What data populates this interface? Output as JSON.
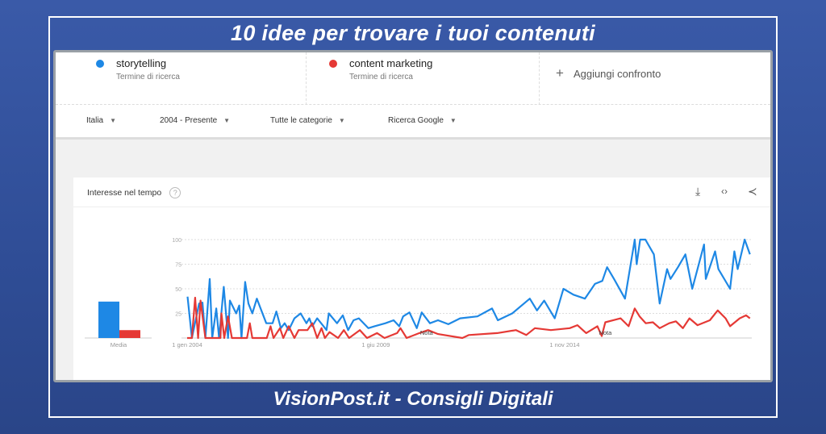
{
  "banner": {
    "title": "10 idee per trovare i tuoi contenuti",
    "footer": "VisionPost.it - Consigli Digitali"
  },
  "terms": [
    {
      "name": "storytelling",
      "sub": "Termine di ricerca",
      "color": "#1e88e5"
    },
    {
      "name": "content marketing",
      "sub": "Termine di ricerca",
      "color": "#e53935"
    }
  ],
  "add_compare": {
    "icon": "plus-icon",
    "label": "Aggiungi confronto"
  },
  "filters": [
    {
      "label": "Italia"
    },
    {
      "label": "2004 - Presente"
    },
    {
      "label": "Tutte le categorie"
    },
    {
      "label": "Ricerca Google"
    }
  ],
  "card": {
    "title": "Interesse nel tempo",
    "help": "?",
    "icons": [
      "download-icon",
      "embed-icon",
      "share-icon"
    ]
  },
  "chart_data": {
    "type": "line",
    "title": "Interesse nel tempo",
    "ylim": [
      0,
      100
    ],
    "yticks": [
      "100",
      "75",
      "50",
      "25"
    ],
    "xticks": [
      {
        "label": "1 gen 2004",
        "date": "2004-01-01"
      },
      {
        "label": "1 giu 2009",
        "date": "2009-06-01"
      },
      {
        "label": "1 nov 2014",
        "date": "2014-11-01"
      }
    ],
    "grid": true,
    "average": {
      "label": "Media",
      "values": [
        37,
        8
      ]
    },
    "annotations": [
      {
        "label": "Nota",
        "date": "2010-11-15"
      },
      {
        "label": "Nota",
        "date": "2016-01-01"
      }
    ],
    "series": [
      {
        "name": "storytelling",
        "color": "#1e88e5",
        "points": [
          [
            "2004-01-05",
            42
          ],
          [
            "2004-02-20",
            0
          ],
          [
            "2004-05-05",
            35
          ],
          [
            "2004-06-10",
            36
          ],
          [
            "2004-07-10",
            0
          ],
          [
            "2004-08-25",
            60
          ],
          [
            "2004-09-20",
            0
          ],
          [
            "2004-11-01",
            30
          ],
          [
            "2004-12-01",
            0
          ],
          [
            "2005-01-20",
            52
          ],
          [
            "2005-03-05",
            0
          ],
          [
            "2005-03-25",
            38
          ],
          [
            "2005-05-30",
            25
          ],
          [
            "2005-07-01",
            33
          ],
          [
            "2005-07-25",
            0
          ],
          [
            "2005-09-01",
            57
          ],
          [
            "2005-10-05",
            35
          ],
          [
            "2005-11-15",
            25
          ],
          [
            "2006-01-01",
            40
          ],
          [
            "2006-04-10",
            15
          ],
          [
            "2006-06-15",
            15
          ],
          [
            "2006-07-25",
            27
          ],
          [
            "2006-09-10",
            10
          ],
          [
            "2006-10-20",
            15
          ],
          [
            "2006-12-01",
            8
          ],
          [
            "2007-01-30",
            20
          ],
          [
            "2007-04-05",
            25
          ],
          [
            "2007-06-05",
            15
          ],
          [
            "2007-07-05",
            20
          ],
          [
            "2007-08-05",
            12
          ],
          [
            "2007-09-25",
            20
          ],
          [
            "2007-12-01",
            12
          ],
          [
            "2008-01-01",
            8
          ],
          [
            "2008-01-25",
            25
          ],
          [
            "2008-04-20",
            15
          ],
          [
            "2008-06-20",
            23
          ],
          [
            "2008-08-15",
            8
          ],
          [
            "2008-10-10",
            18
          ],
          [
            "2008-12-05",
            20
          ],
          [
            "2009-03-15",
            10
          ],
          [
            "2009-05-20",
            12
          ],
          [
            "2009-09-10",
            15
          ],
          [
            "2009-12-05",
            18
          ],
          [
            "2010-02-01",
            12
          ],
          [
            "2010-03-15",
            22
          ],
          [
            "2010-05-20",
            26
          ],
          [
            "2010-08-05",
            10
          ],
          [
            "2010-09-25",
            26
          ],
          [
            "2010-12-20",
            15
          ],
          [
            "2011-03-15",
            18
          ],
          [
            "2011-07-01",
            14
          ],
          [
            "2011-11-01",
            20
          ],
          [
            "2012-05-01",
            22
          ],
          [
            "2012-10-01",
            30
          ],
          [
            "2012-12-01",
            18
          ],
          [
            "2013-05-01",
            25
          ],
          [
            "2013-11-01",
            40
          ],
          [
            "2014-01-15",
            28
          ],
          [
            "2014-04-01",
            38
          ],
          [
            "2014-07-20",
            20
          ],
          [
            "2014-10-20",
            50
          ],
          [
            "2015-02-01",
            44
          ],
          [
            "2015-06-01",
            40
          ],
          [
            "2015-09-15",
            55
          ],
          [
            "2015-12-01",
            58
          ],
          [
            "2016-01-20",
            72
          ],
          [
            "2016-04-01",
            60
          ],
          [
            "2016-07-25",
            40
          ],
          [
            "2016-11-05",
            100
          ],
          [
            "2016-11-25",
            75
          ],
          [
            "2017-01-01",
            100
          ],
          [
            "2017-02-25",
            100
          ],
          [
            "2017-05-25",
            85
          ],
          [
            "2017-07-25",
            35
          ],
          [
            "2017-10-10",
            70
          ],
          [
            "2017-11-15",
            60
          ],
          [
            "2018-02-01",
            72
          ],
          [
            "2018-04-20",
            85
          ],
          [
            "2018-07-01",
            50
          ],
          [
            "2018-11-01",
            95
          ],
          [
            "2018-11-20",
            60
          ],
          [
            "2019-02-25",
            88
          ],
          [
            "2019-04-01",
            70
          ],
          [
            "2019-08-01",
            50
          ],
          [
            "2019-09-15",
            88
          ],
          [
            "2019-10-20",
            70
          ],
          [
            "2020-01-01",
            100
          ],
          [
            "2020-02-25",
            85
          ]
        ]
      },
      {
        "name": "content marketing",
        "color": "#e53935",
        "points": [
          [
            "2004-01-01",
            0
          ],
          [
            "2004-02-20",
            0
          ],
          [
            "2004-03-25",
            41
          ],
          [
            "2004-04-25",
            0
          ],
          [
            "2004-05-20",
            38
          ],
          [
            "2004-07-10",
            0
          ],
          [
            "2004-12-15",
            0
          ],
          [
            "2004-12-25",
            25
          ],
          [
            "2005-01-25",
            0
          ],
          [
            "2005-03-05",
            22
          ],
          [
            "2005-04-15",
            0
          ],
          [
            "2005-09-20",
            0
          ],
          [
            "2005-10-20",
            15
          ],
          [
            "2005-11-15",
            0
          ],
          [
            "2006-04-15",
            0
          ],
          [
            "2006-05-25",
            12
          ],
          [
            "2006-06-25",
            0
          ],
          [
            "2006-09-01",
            10
          ],
          [
            "2006-10-05",
            0
          ],
          [
            "2006-12-01",
            12
          ],
          [
            "2007-01-30",
            0
          ],
          [
            "2007-03-15",
            8
          ],
          [
            "2007-06-15",
            8
          ],
          [
            "2007-08-05",
            15
          ],
          [
            "2007-09-25",
            0
          ],
          [
            "2007-11-10",
            10
          ],
          [
            "2007-12-15",
            0
          ],
          [
            "2008-02-01",
            6
          ],
          [
            "2008-05-01",
            0
          ],
          [
            "2008-07-01",
            8
          ],
          [
            "2008-08-25",
            0
          ],
          [
            "2008-12-15",
            8
          ],
          [
            "2009-03-01",
            0
          ],
          [
            "2009-06-15",
            5
          ],
          [
            "2009-09-01",
            0
          ],
          [
            "2010-01-10",
            5
          ],
          [
            "2010-02-15",
            10
          ],
          [
            "2010-04-20",
            0
          ],
          [
            "2010-09-01",
            5
          ],
          [
            "2010-12-01",
            8
          ],
          [
            "2011-03-15",
            4
          ],
          [
            "2011-11-25",
            0
          ],
          [
            "2012-02-01",
            3
          ],
          [
            "2012-11-25",
            5
          ],
          [
            "2013-06-10",
            8
          ],
          [
            "2013-09-25",
            3
          ],
          [
            "2013-12-25",
            10
          ],
          [
            "2014-06-10",
            8
          ],
          [
            "2014-12-25",
            10
          ],
          [
            "2015-03-15",
            13
          ],
          [
            "2015-06-15",
            5
          ],
          [
            "2015-10-10",
            12
          ],
          [
            "2015-11-25",
            2
          ],
          [
            "2016-01-01",
            16
          ],
          [
            "2016-06-10",
            20
          ],
          [
            "2016-09-01",
            12
          ],
          [
            "2016-11-05",
            30
          ],
          [
            "2016-12-25",
            22
          ],
          [
            "2017-03-01",
            15
          ],
          [
            "2017-05-15",
            16
          ],
          [
            "2017-07-25",
            10
          ],
          [
            "2017-11-01",
            15
          ],
          [
            "2018-01-10",
            17
          ],
          [
            "2018-03-25",
            10
          ],
          [
            "2018-06-01",
            20
          ],
          [
            "2018-08-25",
            13
          ],
          [
            "2019-01-01",
            18
          ],
          [
            "2019-03-25",
            28
          ],
          [
            "2019-06-15",
            20
          ],
          [
            "2019-08-01",
            12
          ],
          [
            "2019-11-10",
            20
          ],
          [
            "2020-01-15",
            23
          ],
          [
            "2020-02-25",
            20
          ]
        ]
      }
    ]
  }
}
